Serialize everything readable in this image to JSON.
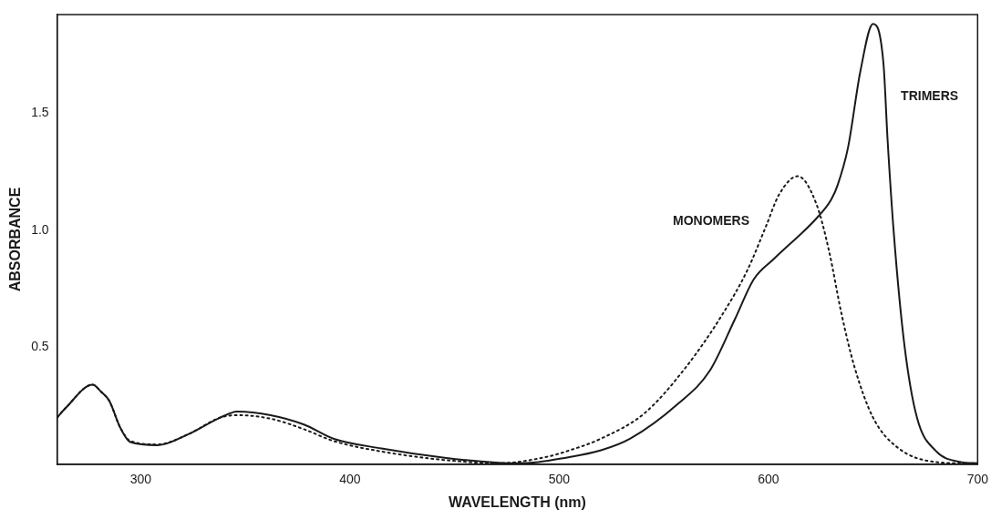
{
  "chart_data": {
    "type": "line",
    "xlabel": "WAVELENGTH (nm)",
    "ylabel": "ABSORBANCE",
    "xlim": [
      260,
      700
    ],
    "xticks": [
      300,
      400,
      500,
      600,
      700
    ],
    "ylim": [
      0,
      1.92
    ],
    "yticks": [
      0.5,
      {
        "value": 1,
        "label": "1.0"
      },
      1.5
    ],
    "grid": false,
    "legend": false,
    "marker": "none",
    "series": [
      {
        "name": "MONOMERS",
        "color": "#1a1a1a",
        "line_style": "dotted",
        "x": [
          260,
          264,
          277,
          281,
          285,
          290,
          295,
          308,
          323,
          338,
          346,
          362,
          378,
          392,
          415,
          446,
          471,
          493,
          505,
          520,
          541,
          561,
          578,
          590,
          599,
          605,
          614,
          623,
          629,
          635,
          641,
          650,
          662,
          680,
          700
        ],
        "values": [
          0.2,
          0.24,
          0.34,
          0.31,
          0.27,
          0.16,
          0.1,
          0.085,
          0.13,
          0.2,
          0.21,
          0.195,
          0.15,
          0.1,
          0.055,
          0.018,
          0.005,
          0.03,
          0.06,
          0.11,
          0.22,
          0.42,
          0.64,
          0.83,
          1.02,
          1.15,
          1.23,
          1.11,
          0.91,
          0.64,
          0.42,
          0.2,
          0.07,
          0.01,
          0.003
        ]
      },
      {
        "name": "TRIMERS",
        "color": "#1a1a1a",
        "line_style": "solid",
        "x": [
          260,
          264,
          277,
          281,
          285,
          290,
          295,
          308,
          323,
          338,
          346,
          362,
          378,
          392,
          415,
          446,
          471,
          480,
          490,
          501,
          520,
          534,
          557,
          572,
          584,
          593,
          603,
          624,
          630,
          633,
          638,
          644,
          650,
          655,
          657,
          660,
          665,
          671,
          680,
          692,
          700
        ],
        "values": [
          0.2,
          0.24,
          0.34,
          0.31,
          0.27,
          0.16,
          0.095,
          0.082,
          0.13,
          0.2,
          0.225,
          0.21,
          0.17,
          0.11,
          0.068,
          0.027,
          0.007,
          0.005,
          0.01,
          0.025,
          0.06,
          0.11,
          0.26,
          0.4,
          0.62,
          0.79,
          0.88,
          1.06,
          1.13,
          1.19,
          1.35,
          1.68,
          1.88,
          1.71,
          1.38,
          0.98,
          0.51,
          0.2,
          0.058,
          0.01,
          0.005
        ]
      }
    ]
  }
}
